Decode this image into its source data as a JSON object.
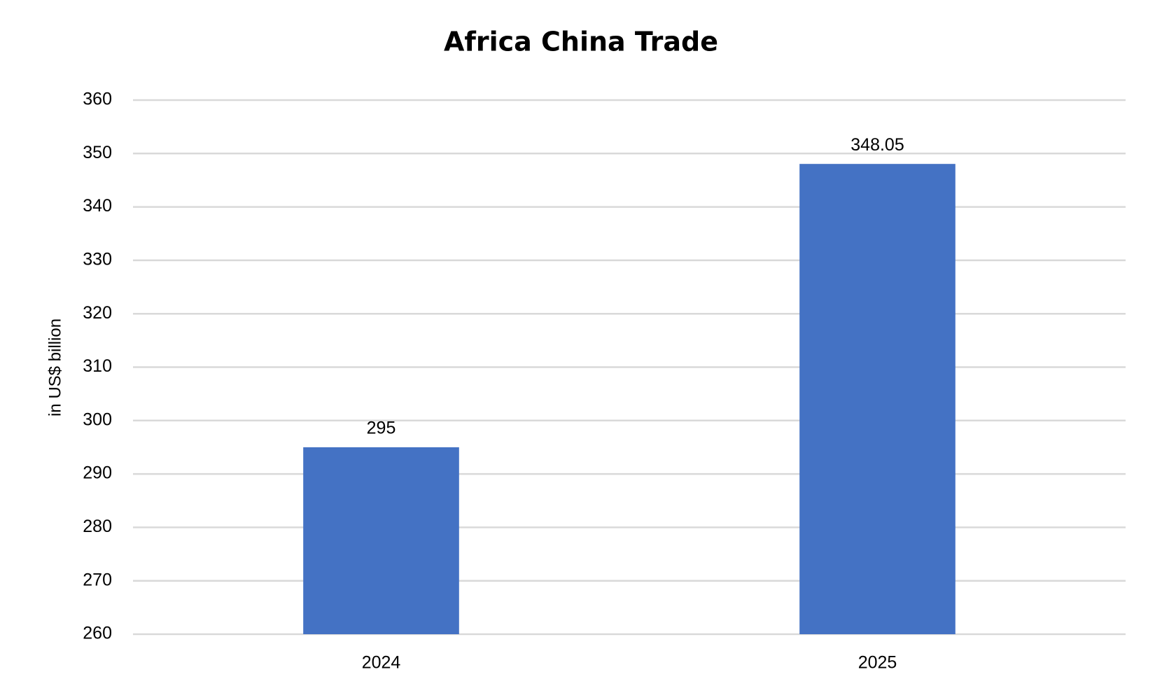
{
  "chart_data": {
    "type": "bar",
    "title": "Africa China Trade",
    "y_label": "in US$ billion",
    "categories": [
      "2024",
      "2025"
    ],
    "values": [
      295,
      348.05
    ],
    "color": "#4472c4",
    "ylim": [
      260,
      360
    ],
    "yticks": [
      260,
      270,
      280,
      290,
      300,
      310,
      320,
      330,
      340,
      350,
      360
    ],
    "grid": true
  }
}
